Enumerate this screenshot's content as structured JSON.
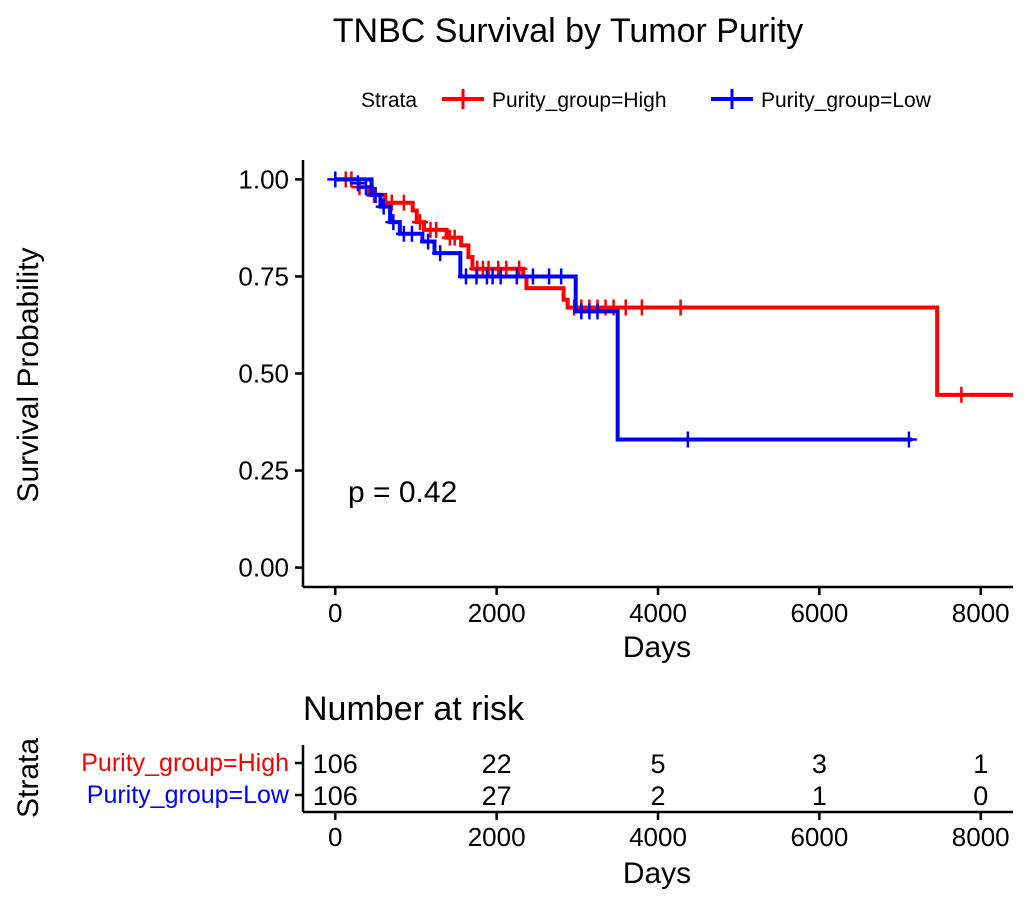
{
  "chart_data": {
    "type": "line",
    "title": "TNBC Survival by Tumor Purity",
    "xlabel": "Days",
    "ylabel": "Survival Probability",
    "xlim": [
      -400,
      8400
    ],
    "ylim": [
      -0.05,
      1.05
    ],
    "x_ticks": [
      0,
      2000,
      4000,
      6000,
      8000
    ],
    "y_ticks": [
      0.0,
      0.25,
      0.5,
      0.75,
      1.0
    ],
    "y_tick_labels": [
      "0.00",
      "0.25",
      "0.50",
      "0.75",
      "1.00"
    ],
    "legend": {
      "title": "Strata",
      "position": "top"
    },
    "annotation": "p = 0.42",
    "series": [
      {
        "name": "Purity_group=High",
        "color": "#FF0000",
        "steps": [
          [
            0,
            1.0
          ],
          [
            290,
            0.98
          ],
          [
            420,
            0.96
          ],
          [
            620,
            0.94
          ],
          [
            960,
            0.92
          ],
          [
            1010,
            0.89
          ],
          [
            1100,
            0.87
          ],
          [
            1380,
            0.85
          ],
          [
            1560,
            0.83
          ],
          [
            1650,
            0.8
          ],
          [
            1700,
            0.77
          ],
          [
            2330,
            0.75
          ],
          [
            2370,
            0.72
          ],
          [
            2830,
            0.69
          ],
          [
            2880,
            0.67
          ],
          [
            7430,
            0.67
          ],
          [
            7460,
            0.445
          ],
          [
            8400,
            0.445
          ]
        ],
        "censors": [
          [
            130,
            1.0
          ],
          [
            200,
            1.0
          ],
          [
            300,
            0.98
          ],
          [
            480,
            0.96
          ],
          [
            700,
            0.94
          ],
          [
            850,
            0.94
          ],
          [
            1050,
            0.89
          ],
          [
            1180,
            0.87
          ],
          [
            1250,
            0.87
          ],
          [
            1420,
            0.85
          ],
          [
            1480,
            0.85
          ],
          [
            1760,
            0.77
          ],
          [
            1830,
            0.77
          ],
          [
            1900,
            0.77
          ],
          [
            2020,
            0.77
          ],
          [
            2120,
            0.77
          ],
          [
            2280,
            0.77
          ],
          [
            2960,
            0.67
          ],
          [
            3050,
            0.67
          ],
          [
            3150,
            0.67
          ],
          [
            3250,
            0.67
          ],
          [
            3350,
            0.67
          ],
          [
            3450,
            0.67
          ],
          [
            3600,
            0.67
          ],
          [
            3800,
            0.67
          ],
          [
            4280,
            0.67
          ],
          [
            7760,
            0.445
          ]
        ]
      },
      {
        "name": "Purity_group=Low",
        "color": "#0000FF",
        "steps": [
          [
            0,
            1.0
          ],
          [
            450,
            0.96
          ],
          [
            560,
            0.93
          ],
          [
            680,
            0.89
          ],
          [
            800,
            0.86
          ],
          [
            1080,
            0.84
          ],
          [
            1230,
            0.81
          ],
          [
            1550,
            0.75
          ],
          [
            2950,
            0.75
          ],
          [
            2980,
            0.66
          ],
          [
            3480,
            0.66
          ],
          [
            3500,
            0.33
          ],
          [
            7150,
            0.33
          ]
        ],
        "censors": [
          [
            0,
            1.0
          ],
          [
            280,
            0.99
          ],
          [
            380,
            0.98
          ],
          [
            500,
            0.96
          ],
          [
            600,
            0.93
          ],
          [
            720,
            0.89
          ],
          [
            850,
            0.86
          ],
          [
            950,
            0.86
          ],
          [
            1150,
            0.84
          ],
          [
            1300,
            0.81
          ],
          [
            1620,
            0.75
          ],
          [
            1750,
            0.75
          ],
          [
            1880,
            0.75
          ],
          [
            1950,
            0.75
          ],
          [
            2050,
            0.75
          ],
          [
            2250,
            0.75
          ],
          [
            2450,
            0.75
          ],
          [
            2650,
            0.75
          ],
          [
            2800,
            0.75
          ],
          [
            3050,
            0.66
          ],
          [
            3150,
            0.66
          ],
          [
            3250,
            0.66
          ],
          [
            4370,
            0.33
          ],
          [
            7110,
            0.33
          ]
        ]
      }
    ],
    "risk_table": {
      "title": "Number at risk",
      "ylabel": "Strata",
      "xlabel": "Days",
      "times": [
        0,
        2000,
        4000,
        6000,
        8000
      ],
      "rows": [
        {
          "name": "Purity_group=High",
          "color": "#FF0000",
          "values": [
            "106",
            "22",
            "5",
            "3",
            "1"
          ]
        },
        {
          "name": "Purity_group=Low",
          "color": "#0000FF",
          "values": [
            "106",
            "27",
            "2",
            "1",
            "0"
          ]
        }
      ]
    }
  }
}
